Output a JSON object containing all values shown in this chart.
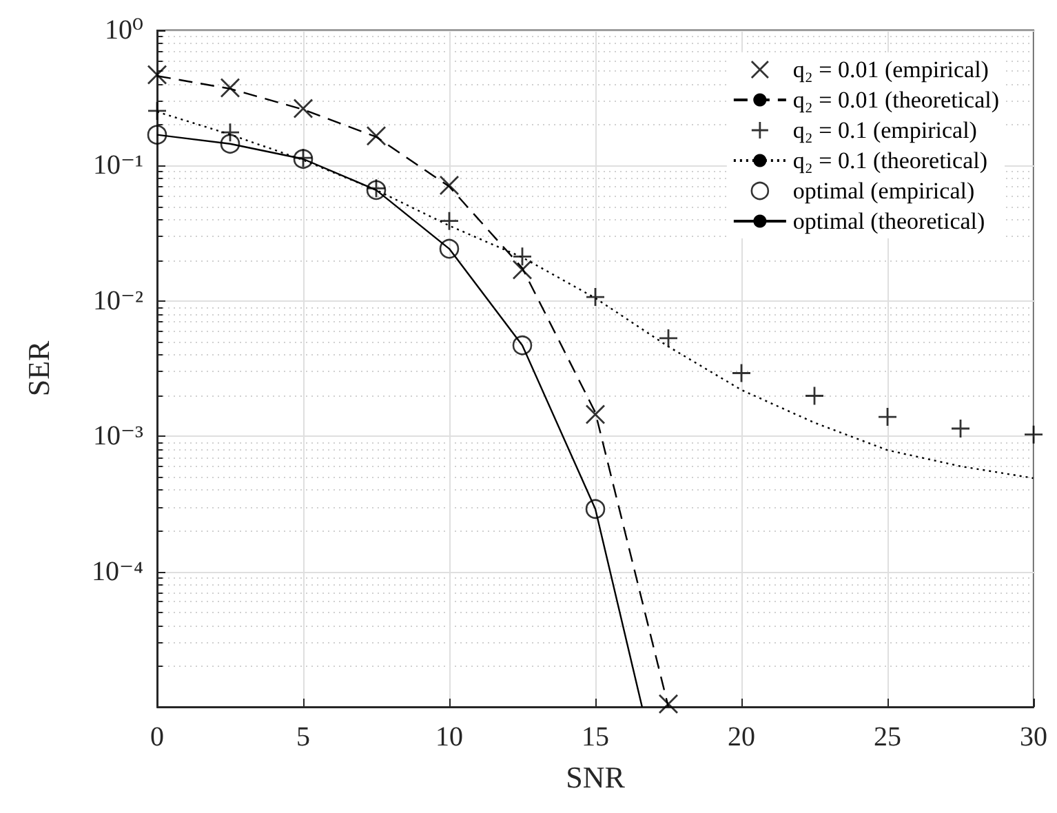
{
  "chart_data": {
    "type": "line",
    "xlabel": "SNR",
    "ylabel": "SER",
    "log": "y",
    "grid": true,
    "legend": "top right",
    "xlim": [
      0,
      30
    ],
    "xticks": [
      0,
      5,
      10,
      15,
      20,
      25,
      30
    ],
    "ylim": [
      1e-05,
      1
    ],
    "yticks": [
      {
        "value": 1,
        "label": "10⁰"
      },
      {
        "value": 0.1,
        "label": "10⁻¹"
      },
      {
        "value": 0.01,
        "label": "10⁻²"
      },
      {
        "value": 0.001,
        "label": "10⁻³"
      },
      {
        "value": 0.0001,
        "label": "10⁻⁴"
      },
      {
        "value": 1e-05,
        "label": null
      }
    ],
    "series": [
      {
        "name": "q₂ = 0.01 (empirical)",
        "type": "scatter",
        "marker": "cross",
        "color": "#000000",
        "x": [
          0,
          2.5,
          5,
          7.5,
          10,
          12.5,
          15,
          17.5
        ],
        "values": [
          0.47,
          0.376,
          0.264,
          0.166,
          0.0715,
          0.017,
          0.00145,
          1.05e-05
        ]
      },
      {
        "name": "q₂ = 0.01 (theoretical)",
        "type": "line",
        "marker": "none",
        "line_style": "dashed",
        "color": "#000000",
        "x": [
          0,
          2.5,
          5,
          7.5,
          10,
          12.5,
          15,
          17.5
        ],
        "values": [
          0.46,
          0.37,
          0.26,
          0.163,
          0.07,
          0.0175,
          0.0015,
          1e-05
        ]
      },
      {
        "name": "q₂ = 0.1 (empirical)",
        "type": "scatter",
        "marker": "plus",
        "color": "#000000",
        "x": [
          0,
          2.5,
          5,
          7.5,
          10,
          12.5,
          15,
          17.5,
          20,
          22.5,
          25,
          27.5,
          30
        ],
        "values": [
          0.254,
          0.176,
          0.114,
          0.068,
          0.039,
          0.0213,
          0.0107,
          0.0053,
          0.00293,
          0.00199,
          0.00139,
          0.00114,
          0.00103
        ]
      },
      {
        "name": "q₂ = 0.1 (theoretical)",
        "type": "line",
        "marker": "none",
        "line_style": "dotted",
        "color": "#000000",
        "x": [
          0,
          2.5,
          5,
          7.5,
          10,
          12.5,
          15,
          17.5,
          20,
          22.5,
          25,
          27.5,
          30
        ],
        "values": [
          0.25,
          0.17,
          0.11,
          0.066,
          0.036,
          0.021,
          0.0105,
          0.0046,
          0.0022,
          0.00126,
          0.00079,
          0.0006,
          0.00049
        ]
      },
      {
        "name": "optimal (empirical)",
        "type": "scatter",
        "marker": "circle",
        "color": "#000000",
        "x": [
          0,
          2.5,
          5,
          7.5,
          10,
          12.5,
          15
        ],
        "values": [
          0.169,
          0.145,
          0.112,
          0.066,
          0.0243,
          0.0047,
          0.00029
        ]
      },
      {
        "name": "optimal (theoretical)",
        "type": "line",
        "marker": "none",
        "line_style": "solid",
        "color": "#000000",
        "x": [
          0,
          2.5,
          5,
          7.5,
          10,
          12.5,
          15,
          16.6
        ],
        "values": [
          0.169,
          0.145,
          0.112,
          0.066,
          0.0243,
          0.0047,
          0.00029,
          1e-05
        ]
      }
    ]
  }
}
